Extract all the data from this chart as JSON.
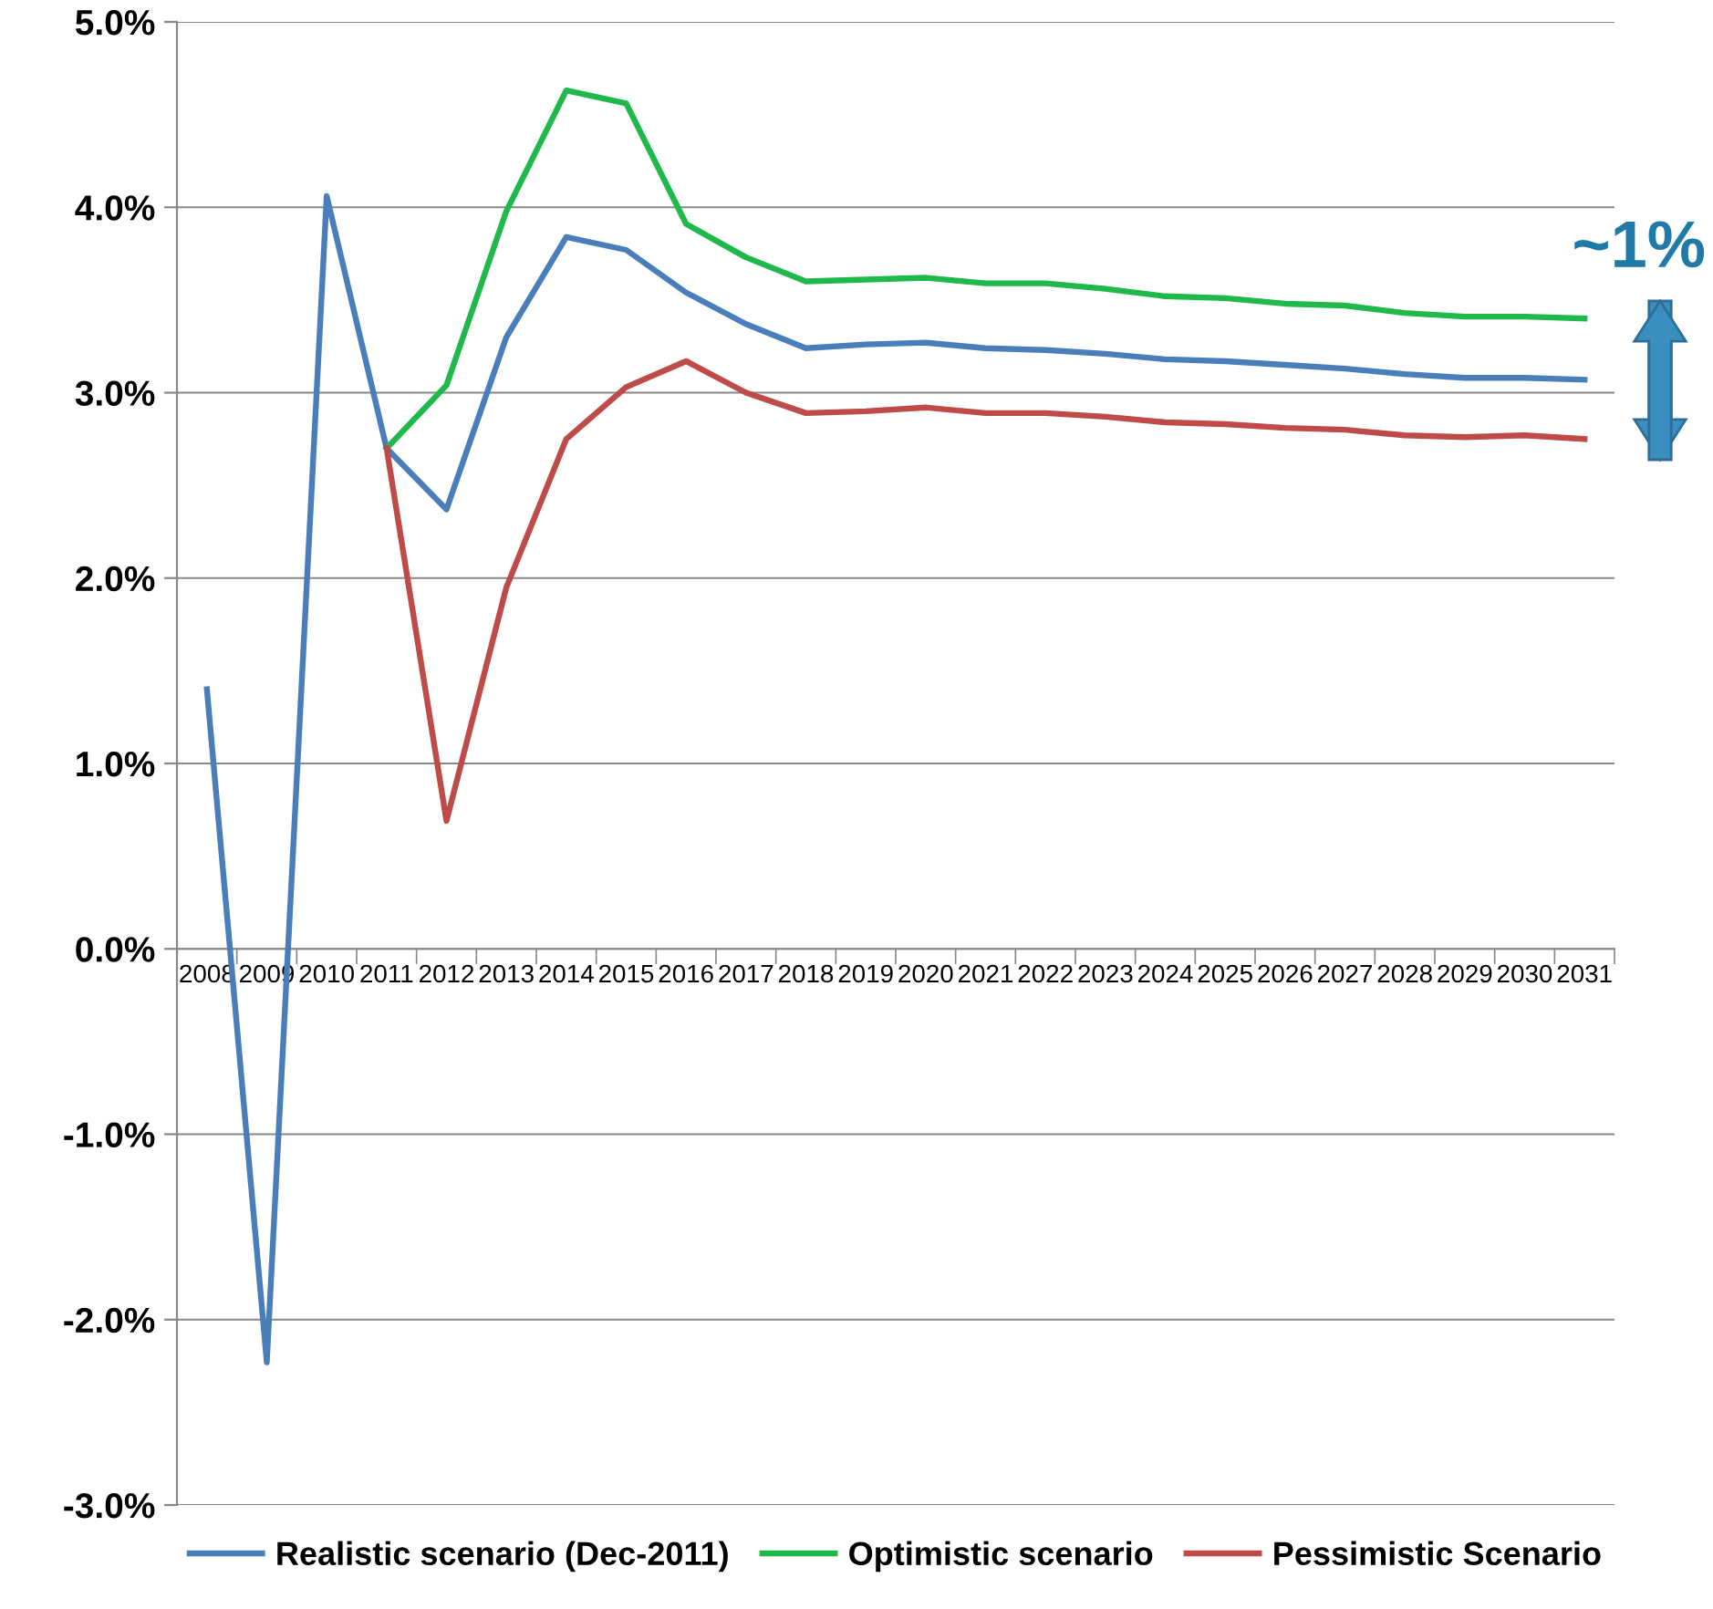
{
  "chart_data": {
    "type": "line",
    "categories": [
      "2008",
      "2009",
      "2010",
      "2011",
      "2012",
      "2013",
      "2014",
      "2015",
      "2016",
      "2017",
      "2018",
      "2019",
      "2020",
      "2021",
      "2022",
      "2023",
      "2024",
      "2025",
      "2026",
      "2027",
      "2028",
      "2029",
      "2030",
      "2031"
    ],
    "series": [
      {
        "name": "Realistic scenario (Dec-2011)",
        "color": "#4a7ebb",
        "values": [
          1.4,
          -2.23,
          4.06,
          2.7,
          2.37,
          3.3,
          3.84,
          3.77,
          3.54,
          3.37,
          3.24,
          3.26,
          3.27,
          3.24,
          3.23,
          3.21,
          3.18,
          3.17,
          3.15,
          3.13,
          3.1,
          3.08,
          3.08,
          3.07
        ]
      },
      {
        "name": "Optimistic scenario",
        "color": "#1fb84a",
        "values": [
          null,
          null,
          null,
          2.7,
          3.04,
          3.98,
          4.63,
          4.56,
          3.91,
          3.73,
          3.6,
          3.61,
          3.62,
          3.59,
          3.59,
          3.56,
          3.52,
          3.51,
          3.48,
          3.47,
          3.43,
          3.41,
          3.41,
          3.4
        ]
      },
      {
        "name": "Pessimistic Scenario",
        "color": "#be4b48",
        "values": [
          null,
          null,
          null,
          2.7,
          0.69,
          1.95,
          2.75,
          3.03,
          3.17,
          3.0,
          2.89,
          2.9,
          2.92,
          2.89,
          2.89,
          2.87,
          2.84,
          2.83,
          2.81,
          2.8,
          2.77,
          2.76,
          2.77,
          2.75
        ]
      }
    ],
    "ylim": [
      -3,
      5
    ],
    "yticks": [
      {
        "value": -3,
        "label": "-3.0%"
      },
      {
        "value": -2,
        "label": "-2.0%"
      },
      {
        "value": -1,
        "label": "-1.0%"
      },
      {
        "value": 0,
        "label": "0.0%"
      },
      {
        "value": 1,
        "label": "1.0%"
      },
      {
        "value": 2,
        "label": "2.0%"
      },
      {
        "value": 3,
        "label": "3.0%"
      },
      {
        "value": 4,
        "label": "4.0%"
      },
      {
        "value": 5,
        "label": "5.0%"
      }
    ],
    "grid": "y",
    "legend": "bottom",
    "marker": "none",
    "line_style": "solid",
    "annotations": [
      "~1%"
    ]
  }
}
